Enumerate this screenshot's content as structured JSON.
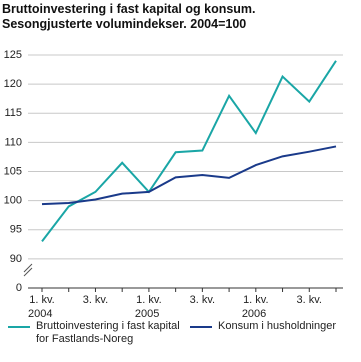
{
  "chart_data": {
    "type": "line",
    "title": "Bruttoinvestering i fast kapital og konsum.",
    "subtitle": "Sesongjusterte volumindekser. 2004=100",
    "categories": [
      "1. kv.",
      null,
      "3. kv.",
      null,
      "1. kv.",
      null,
      "3. kv.",
      null,
      "1. kv.",
      null,
      "3. kv.",
      null
    ],
    "years": [
      "2004",
      null,
      null,
      null,
      "2005",
      null,
      null,
      null,
      "2006",
      null,
      null,
      null
    ],
    "series": [
      {
        "name": "Bruttoinvestering i fast kapital for Fastlands-Noreg",
        "color": "#1aa6a6",
        "values": [
          93,
          99,
          101.5,
          106.5,
          101.5,
          108.3,
          108.6,
          118,
          111.6,
          121.3,
          117,
          124
        ]
      },
      {
        "name": "Konsum i husholdninger",
        "color": "#1a3a8a",
        "values": [
          99.4,
          99.6,
          100.2,
          101.2,
          101.5,
          104,
          104.4,
          103.9,
          106.1,
          107.6,
          108.4,
          109.3
        ]
      }
    ],
    "ylim": [
      0,
      125
    ],
    "axis_break": [
      0,
      85
    ],
    "yticks": [
      0,
      90,
      95,
      100,
      105,
      110,
      115,
      120,
      125
    ],
    "grid": true
  }
}
